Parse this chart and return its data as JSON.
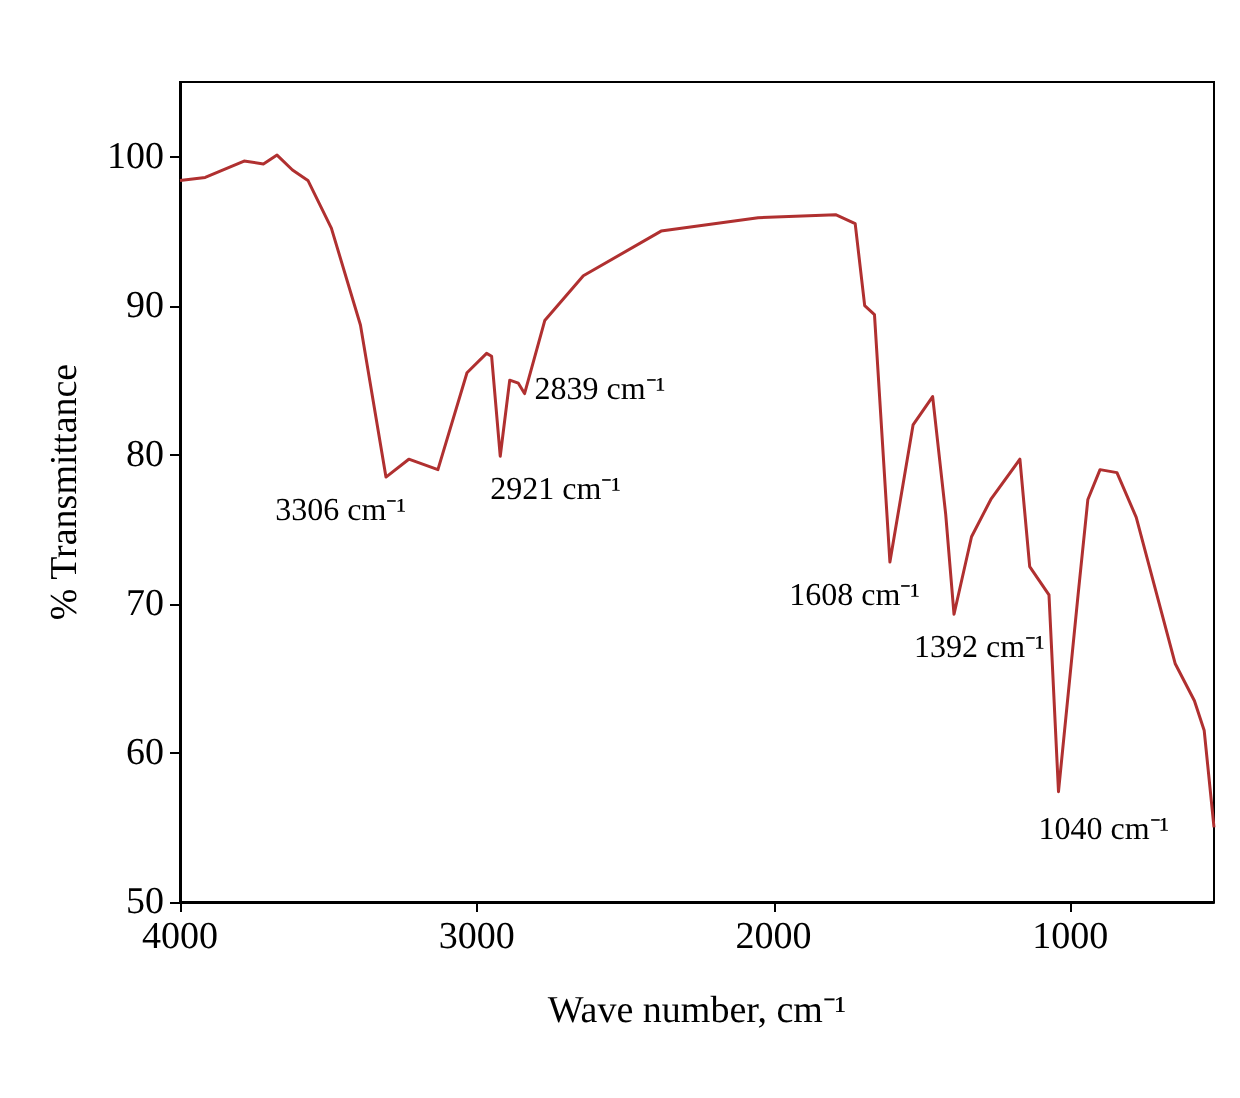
{
  "chart_data": {
    "type": "line",
    "xlabel": "Wave number, cm⁻¹",
    "ylabel": "% Transmittance",
    "xlim": [
      4000,
      516
    ],
    "xticks": [
      4000,
      3000,
      2000,
      1000
    ],
    "ylim": [
      50,
      105
    ],
    "yticks": [
      50,
      60,
      70,
      80,
      90,
      100
    ],
    "grid": false,
    "marker": "none",
    "line_style": "solid",
    "x": [
      4000,
      3915,
      3784,
      3719,
      3673,
      3621,
      3569,
      3490,
      3392,
      3306,
      3229,
      3131,
      3033,
      2967,
      2950,
      2921,
      2889,
      2860,
      2839,
      2771,
      2641,
      2379,
      2052,
      1791,
      1725,
      1693,
      1660,
      1608,
      1530,
      1464,
      1420,
      1392,
      1333,
      1268,
      1170,
      1137,
      1072,
      1040,
      974,
      941,
      900,
      843,
      778,
      647,
      582,
      549,
      516
    ],
    "series": [
      {
        "color": "#b03030",
        "values": [
          98.4,
          98.6,
          99.7,
          99.5,
          100.1,
          99.1,
          98.4,
          95.2,
          88.7,
          78.5,
          79.7,
          79,
          85.5,
          86.8,
          86.6,
          79.9,
          85,
          84.8,
          84.1,
          89,
          92,
          95,
          95.9,
          96.1,
          95.5,
          90,
          89.4,
          72.8,
          82,
          83.9,
          76,
          69.3,
          74.5,
          77,
          79.7,
          72.5,
          70.6,
          57.4,
          70.6,
          77,
          79,
          78.8,
          75.8,
          66,
          63.5,
          61.5,
          55
        ]
      }
    ],
    "annotations": [
      {
        "text": "3306 cm⁻¹",
        "x": 3306,
        "y": 78.5
      },
      {
        "text": "2921 cm⁻¹",
        "x": 2921,
        "y": 79.9
      },
      {
        "text": "2839 cm⁻¹",
        "x": 2839,
        "y": 84.1
      },
      {
        "text": "1608 cm⁻¹",
        "x": 1608,
        "y": 72.8
      },
      {
        "text": "1392 cm⁻¹",
        "x": 1392,
        "y": 69.3
      },
      {
        "text": "1040 cm⁻¹",
        "x": 1040,
        "y": 57.4
      }
    ]
  }
}
